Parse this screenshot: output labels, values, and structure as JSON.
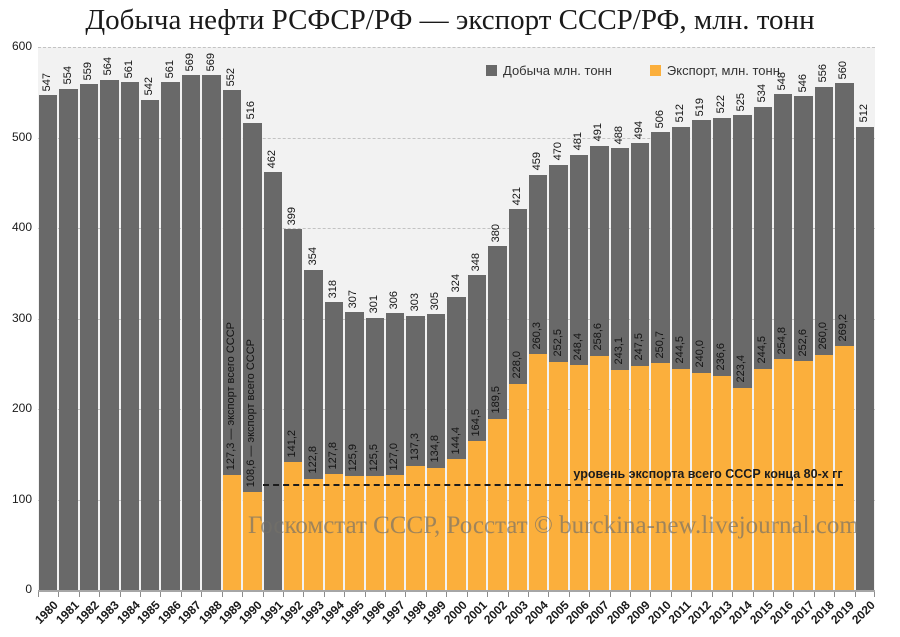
{
  "chart_data": {
    "type": "bar",
    "title": "Добыча нефти РСФСР/РФ — экспорт СССР/РФ, млн. тонн",
    "categories": [
      "1980",
      "1981",
      "1982",
      "1983",
      "1984",
      "1985",
      "1986",
      "1987",
      "1988",
      "1989",
      "1990",
      "1991",
      "1992",
      "1993",
      "1994",
      "1995",
      "1996",
      "1997",
      "1998",
      "1999",
      "2000",
      "2001",
      "2002",
      "2003",
      "2004",
      "2005",
      "2006",
      "2007",
      "2008",
      "2009",
      "2010",
      "2011",
      "2012",
      "2013",
      "2014",
      "2015",
      "2016",
      "2017",
      "2018",
      "2019",
      "2020"
    ],
    "series": [
      {
        "name": "Добыча млн. тонн",
        "color": "#696969",
        "values": [
          547,
          554,
          559,
          564,
          561,
          542,
          561,
          569,
          569,
          552,
          516,
          462,
          399,
          354,
          318,
          307,
          301,
          306,
          303,
          305,
          324,
          348,
          380,
          421,
          459,
          470,
          481,
          491,
          488,
          494,
          506,
          512,
          519,
          522,
          525,
          534,
          548,
          546,
          556,
          560,
          512
        ]
      },
      {
        "name": "Экспорт,  млн. тонн",
        "color": "#FBAF3C",
        "values": [
          null,
          null,
          null,
          null,
          null,
          null,
          null,
          null,
          null,
          127.3,
          108.6,
          null,
          141.2,
          122.8,
          127.8,
          125.9,
          125.5,
          127.0,
          137.3,
          134.8,
          144.4,
          164.5,
          189.5,
          228.0,
          260.3,
          252.5,
          248.4,
          258.6,
          243.1,
          247.5,
          250.7,
          244.5,
          240.0,
          236.6,
          223.4,
          244.5,
          254.8,
          252.6,
          260.0,
          269.2,
          null
        ]
      }
    ],
    "annotations": [
      {
        "year": "1989",
        "text": "127,3 — экспорт всего СССР"
      },
      {
        "year": "1990",
        "text": "108,6 — экспорт всего СССР"
      }
    ],
    "reference_line": {
      "value": 115,
      "label": "уровень экспорта всего СССР конца 80-х гг"
    },
    "ylim": [
      0,
      600
    ],
    "yticks": [
      0,
      100,
      200,
      300,
      400,
      500,
      600
    ],
    "xlabel": "",
    "ylabel": "",
    "grid": "horizontal-dashed",
    "legend_position": "top-center-inside",
    "plot_background": "#f2f2f2",
    "watermark": "Госкомстат СССР, Росстат © burckina-new.livejournal.com"
  }
}
